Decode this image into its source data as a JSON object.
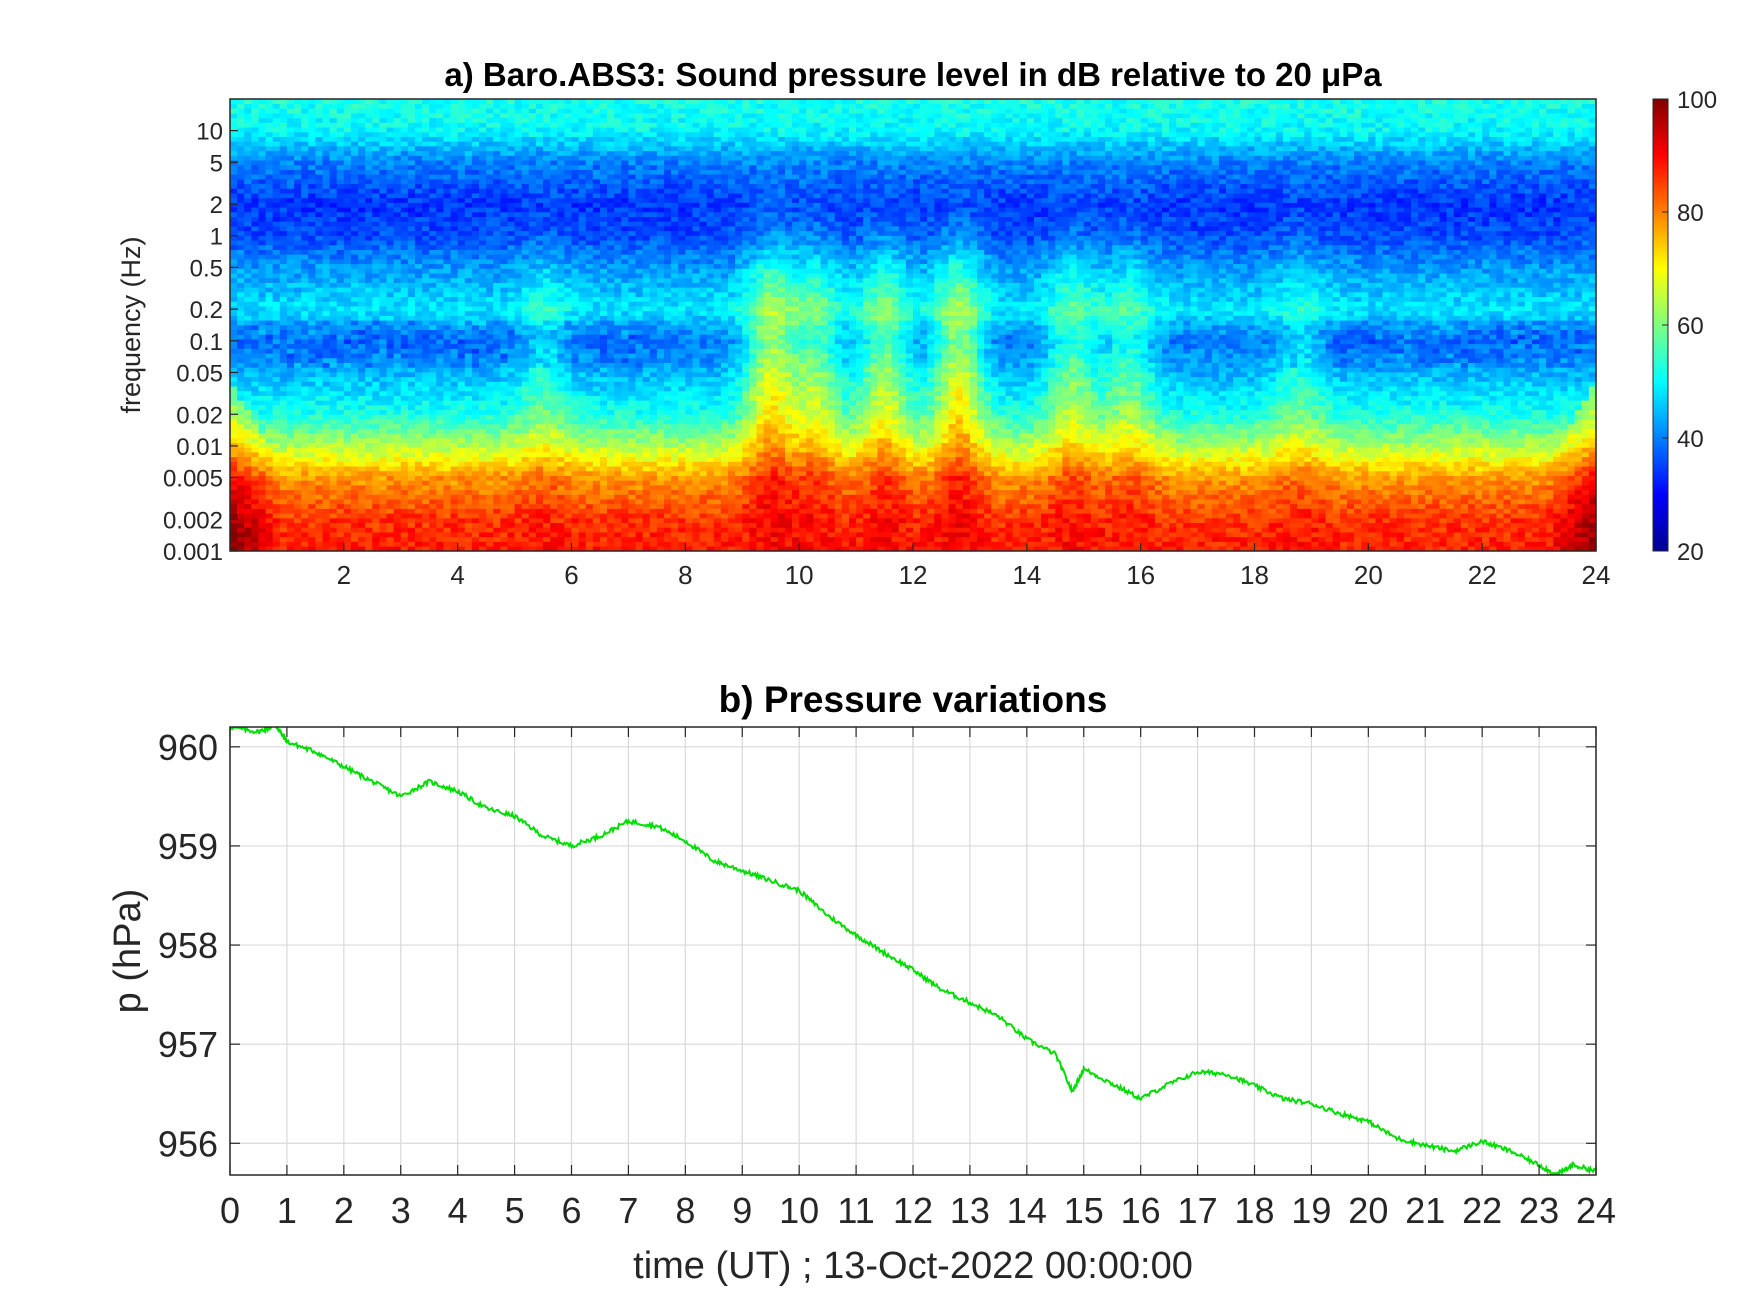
{
  "chart_data": [
    {
      "type": "heatmap",
      "title": "a) Baro.ABS3: Sound pressure level in dB relative to 20 μPa",
      "xlabel": "",
      "ylabel": "frequency (Hz)",
      "xlim": [
        0,
        24
      ],
      "ylim": [
        0.001,
        20
      ],
      "y_scale": "log",
      "x_ticks": [
        2,
        4,
        6,
        8,
        10,
        12,
        14,
        16,
        18,
        20,
        22,
        24
      ],
      "y_ticks": [
        {
          "value": 0.001,
          "label": "0.001"
        },
        {
          "value": 0.002,
          "label": "0.002"
        },
        {
          "value": 0.005,
          "label": "0.005"
        },
        {
          "value": 0.01,
          "label": "0.01"
        },
        {
          "value": 0.02,
          "label": "0.02"
        },
        {
          "value": 0.05,
          "label": "0.05"
        },
        {
          "value": 0.1,
          "label": "0.1"
        },
        {
          "value": 0.2,
          "label": "0.2"
        },
        {
          "value": 0.5,
          "label": "0.5"
        },
        {
          "value": 1,
          "label": "1"
        },
        {
          "value": 2,
          "label": "2"
        },
        {
          "value": 5,
          "label": "5"
        },
        {
          "value": 10,
          "label": "10"
        }
      ],
      "colorbar": {
        "range": [
          20,
          100
        ],
        "ticks": [
          20,
          40,
          60,
          80,
          100
        ],
        "colormap": "jet",
        "placement": "right"
      },
      "level_profile_db": [
        {
          "freq": 0.001,
          "db": 88
        },
        {
          "freq": 0.002,
          "db": 86
        },
        {
          "freq": 0.005,
          "db": 78
        },
        {
          "freq": 0.01,
          "db": 64
        },
        {
          "freq": 0.02,
          "db": 52
        },
        {
          "freq": 0.05,
          "db": 44
        },
        {
          "freq": 0.1,
          "db": 40
        },
        {
          "freq": 0.2,
          "db": 48
        },
        {
          "freq": 0.5,
          "db": 42
        },
        {
          "freq": 1,
          "db": 36
        },
        {
          "freq": 2,
          "db": 34
        },
        {
          "freq": 5,
          "db": 40
        },
        {
          "freq": 10,
          "db": 50
        },
        {
          "freq": 20,
          "db": 52
        }
      ],
      "activity_hours": [
        {
          "time": 9.5,
          "boost_db": 22
        },
        {
          "time": 10.3,
          "boost_db": 16
        },
        {
          "time": 11.5,
          "boost_db": 18
        },
        {
          "time": 12.8,
          "boost_db": 22
        },
        {
          "time": 14.8,
          "boost_db": 14
        },
        {
          "time": 15.8,
          "boost_db": 12
        },
        {
          "time": 5.5,
          "boost_db": 8
        },
        {
          "time": 18.8,
          "boost_db": 8
        }
      ]
    },
    {
      "type": "line",
      "title": "b) Pressure variations",
      "xlabel": "time (UT) ; 13-Oct-2022 00:00:00",
      "ylabel": "p (hPa)",
      "xlim": [
        0,
        24
      ],
      "ylim": [
        955.68,
        960.2
      ],
      "grid": true,
      "x_ticks": [
        0,
        1,
        2,
        3,
        4,
        5,
        6,
        7,
        8,
        9,
        10,
        11,
        12,
        13,
        14,
        15,
        16,
        17,
        18,
        19,
        20,
        21,
        22,
        23,
        24
      ],
      "y_ticks": [
        956,
        957,
        958,
        959,
        960
      ],
      "series": [
        {
          "color": "#00dd00",
          "x": [
            0,
            0.5,
            0.8,
            1,
            1.5,
            2,
            2.5,
            3,
            3.5,
            4,
            4.5,
            5,
            5.5,
            6,
            6.5,
            7,
            7.5,
            8,
            8.5,
            9,
            9.5,
            10,
            10.5,
            11,
            11.5,
            12,
            12.5,
            13,
            13.5,
            14,
            14.5,
            14.8,
            15,
            15.5,
            16,
            16.5,
            17,
            17.5,
            18,
            18.5,
            19,
            19.5,
            20,
            20.5,
            21,
            21.5,
            22,
            22.5,
            23,
            23.3,
            23.6,
            24
          ],
          "y": [
            960.2,
            960.15,
            960.22,
            960.05,
            959.95,
            959.8,
            959.65,
            959.5,
            959.65,
            959.55,
            959.38,
            959.3,
            959.1,
            959.0,
            959.1,
            959.25,
            959.2,
            959.05,
            958.85,
            958.75,
            958.65,
            958.55,
            958.3,
            958.1,
            957.92,
            957.75,
            957.55,
            957.42,
            957.28,
            957.05,
            956.9,
            956.52,
            956.75,
            956.6,
            956.45,
            956.6,
            956.72,
            956.7,
            956.58,
            956.45,
            956.4,
            956.3,
            956.22,
            956.05,
            955.98,
            955.92,
            956.02,
            955.92,
            955.78,
            955.68,
            955.78,
            955.72
          ]
        }
      ]
    }
  ]
}
